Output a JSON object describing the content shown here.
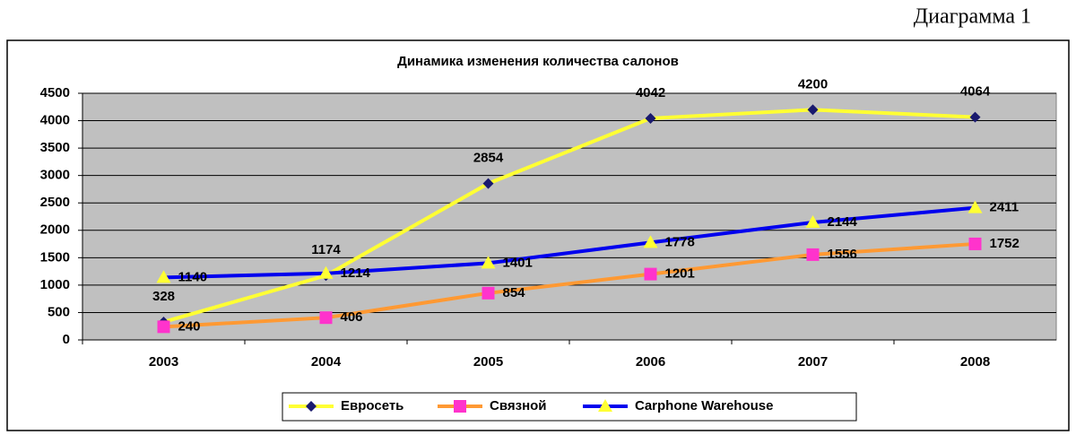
{
  "caption": "Диаграмма 1",
  "chart_data": {
    "type": "line",
    "title": "Динамика изменения количества салонов",
    "categories": [
      "2003",
      "2004",
      "2005",
      "2006",
      "2007",
      "2008"
    ],
    "series": [
      {
        "name": "Евросеть",
        "color": "#ffff33",
        "marker": "diamond",
        "marker_color": "#1a1a6e",
        "values": [
          328,
          1174,
          2854,
          4042,
          4200,
          4064
        ]
      },
      {
        "name": "Связной",
        "color": "#ff9933",
        "marker": "square",
        "marker_color": "#ff33cc",
        "values": [
          240,
          406,
          854,
          1201,
          1556,
          1752
        ]
      },
      {
        "name": "Carphone Warehouse",
        "color": "#0000ee",
        "marker": "triangle",
        "marker_color": "#ffff33",
        "values": [
          1140,
          1214,
          1401,
          1778,
          2144,
          2411
        ]
      }
    ],
    "ylim": [
      0,
      4500
    ],
    "yticks": [
      0,
      500,
      1000,
      1500,
      2000,
      2500,
      3000,
      3500,
      4000,
      4500
    ],
    "grid": true,
    "legend": "bottom",
    "plot_background": "#c0c0c0"
  }
}
